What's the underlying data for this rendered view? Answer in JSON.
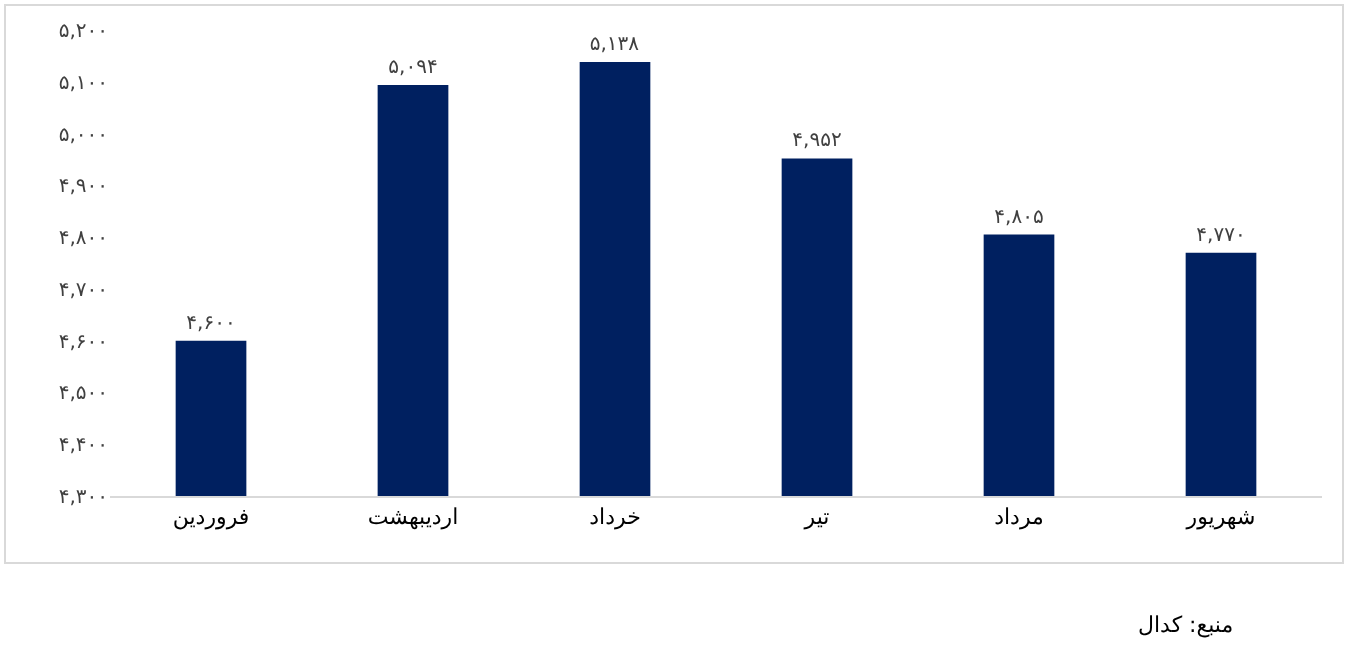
{
  "chart_data": {
    "type": "bar",
    "categories": [
      "فروردین",
      "اردیبهشت",
      "خرداد",
      "تیر",
      "مرداد",
      "شهریور"
    ],
    "values": [
      4600,
      5094,
      5138,
      4952,
      4805,
      4770
    ],
    "value_labels": [
      "۴,۶۰۰",
      "۵,۰۹۴",
      "۵,۱۳۸",
      "۴,۹۵۲",
      "۴,۸۰۵",
      "۴,۷۷۰"
    ],
    "color": "#002060",
    "ylim": [
      4300,
      5200
    ],
    "yticks": [
      {
        "value": 4300,
        "label": "۴,۳۰۰"
      },
      {
        "value": 4400,
        "label": "۴,۴۰۰"
      },
      {
        "value": 4500,
        "label": "۴,۵۰۰"
      },
      {
        "value": 4600,
        "label": "۴,۶۰۰"
      },
      {
        "value": 4700,
        "label": "۴,۷۰۰"
      },
      {
        "value": 4800,
        "label": "۴,۸۰۰"
      },
      {
        "value": 4900,
        "label": "۴,۹۰۰"
      },
      {
        "value": 5000,
        "label": "۵,۰۰۰"
      },
      {
        "value": 5100,
        "label": "۵,۱۰۰"
      },
      {
        "value": 5200,
        "label": "۵,۲۰۰"
      }
    ],
    "grid": false,
    "annotations": [
      "منبع: کدال"
    ]
  }
}
